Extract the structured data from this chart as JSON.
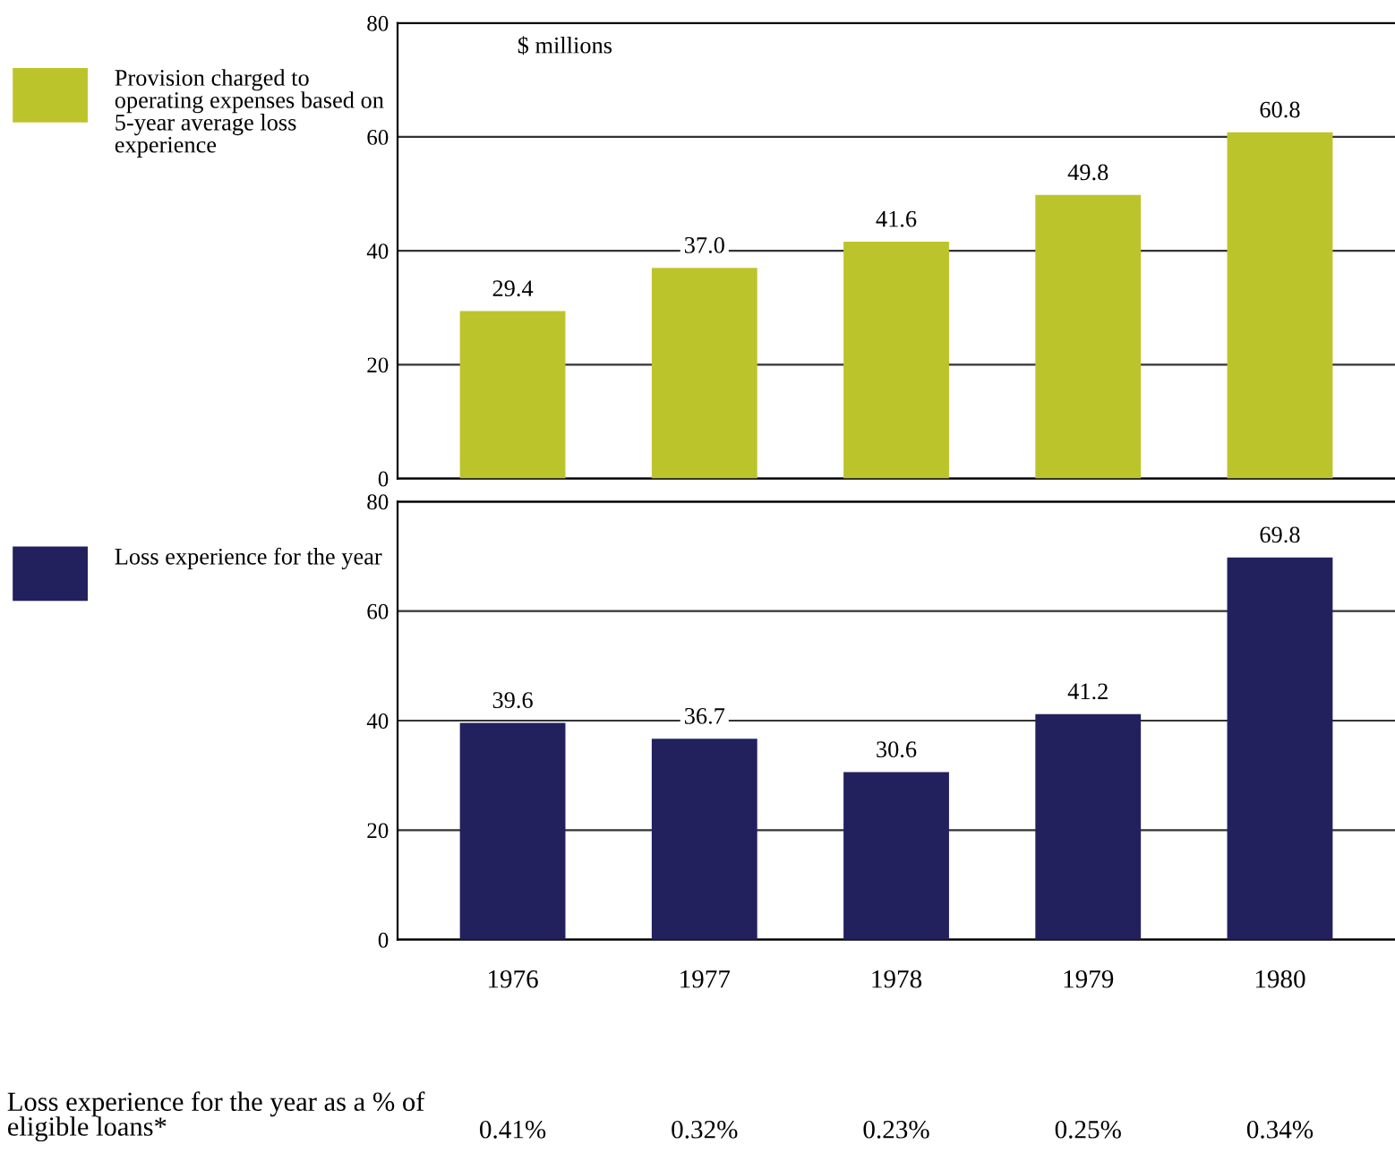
{
  "chart_data": [
    {
      "type": "bar",
      "categories": [
        "1976",
        "1977",
        "1978",
        "1979",
        "1980"
      ],
      "series": [
        {
          "name": "Provision charged to operating expenses based on 5-year average loss experience",
          "color": "#bcc42c",
          "values": [
            29.4,
            37.0,
            41.6,
            49.8,
            60.8
          ],
          "value_labels": [
            "29.4",
            "37.0",
            "41.6",
            "49.8",
            "60.8"
          ]
        }
      ],
      "ylim": [
        0,
        80
      ],
      "yticks": [
        0,
        20,
        40,
        60,
        80
      ],
      "grid": "y",
      "legend": "left",
      "tick_labels": "y",
      "annotations": [
        "$ millions"
      ]
    },
    {
      "type": "bar",
      "categories": [
        "1976",
        "1977",
        "1978",
        "1979",
        "1980"
      ],
      "series": [
        {
          "name": "Loss experience for the year",
          "color": "#22215e",
          "values": [
            39.6,
            36.7,
            30.6,
            41.2,
            69.8
          ],
          "value_labels": [
            "39.6",
            "36.7",
            "30.6",
            "41.2",
            "69.8"
          ]
        }
      ],
      "ylim": [
        0,
        80
      ],
      "yticks": [
        0,
        20,
        40,
        60,
        80
      ],
      "grid": "y",
      "legend": "left",
      "annotations": [
        "Loss experience for the year as a % of eligible loans*",
        "0.41%",
        "0.32%",
        "0.23%",
        "0.25%",
        "0.34%"
      ]
    }
  ]
}
